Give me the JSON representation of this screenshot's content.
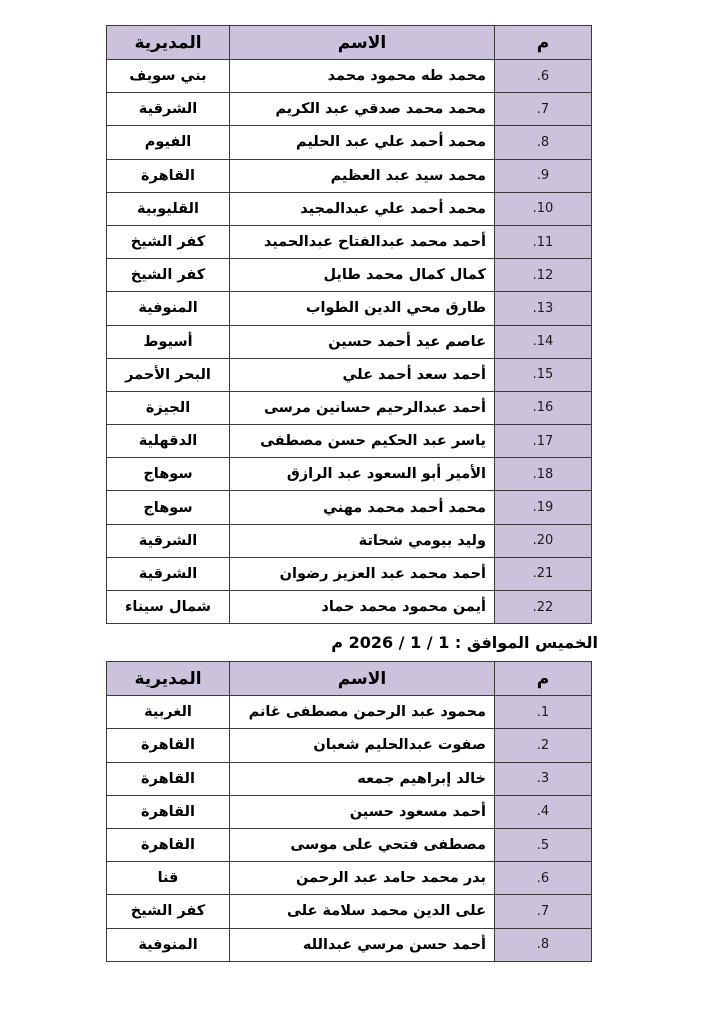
{
  "colors": {
    "cell_fill": "#ccc2dc",
    "border": "#3a3a3a",
    "text": "#000000",
    "page_background": "#ffffff"
  },
  "date_heading": "الخميس الموافق : 1 / 1 / 2026 م",
  "tables": [
    {
      "title": "roster-session-1",
      "headers": {
        "num": "م",
        "name": "الاسم",
        "directorate": "المديرية"
      },
      "rows": [
        {
          "num": ".6",
          "name": "محمد طه محمود محمد",
          "directorate": "بني سويف"
        },
        {
          "num": ".7",
          "name": "محمد محمد صدقي عبد الكريم",
          "directorate": "الشرقية"
        },
        {
          "num": ".8",
          "name": "محمد أحمد علي عبد الحليم",
          "directorate": "الفيوم"
        },
        {
          "num": ".9",
          "name": "محمد سيد عبد العظيم",
          "directorate": "القاهرة"
        },
        {
          "num": ".10",
          "name": "محمد أحمد علي عبدالمجيد",
          "directorate": "القليوبية"
        },
        {
          "num": ".11",
          "name": "أحمد محمد عبدالفتاح عبدالحميد",
          "directorate": "كفر الشيخ"
        },
        {
          "num": ".12",
          "name": "كمال كمال محمد طايل",
          "directorate": "كفر الشيخ"
        },
        {
          "num": ".13",
          "name": "طارق محي الدين الطواب",
          "directorate": "المنوفية"
        },
        {
          "num": ".14",
          "name": "عاصم عيد أحمد حسين",
          "directorate": "أسيوط"
        },
        {
          "num": ".15",
          "name": "أحمد سعد أحمد علي",
          "directorate": "البحر الأحمر"
        },
        {
          "num": ".16",
          "name": "أحمد عبدالرحيم حسانين مرسى",
          "directorate": "الجيزة"
        },
        {
          "num": ".17",
          "name": "ياسر عبد الحكيم حسن مصطفى",
          "directorate": "الدقهلية"
        },
        {
          "num": ".18",
          "name": "الأمير أبو السعود عبد الرازق",
          "directorate": "سوهاج"
        },
        {
          "num": ".19",
          "name": "محمد أحمد محمد مهني",
          "directorate": "سوهاج"
        },
        {
          "num": ".20",
          "name": "وليد بيومي شحاتة",
          "directorate": "الشرقية"
        },
        {
          "num": ".21",
          "name": "أحمد محمد عبد العزيز رضوان",
          "directorate": "الشرقية"
        },
        {
          "num": ".22",
          "name": "أيمن محمود محمد حماد",
          "directorate": "شمال سيناء"
        }
      ]
    },
    {
      "title": "roster-session-2",
      "headers": {
        "num": "م",
        "name": "الاسم",
        "directorate": "المديرية"
      },
      "rows": [
        {
          "num": ".1",
          "name": "محمود عبد الرحمن مصطفى غانم",
          "directorate": "الغربية"
        },
        {
          "num": ".2",
          "name": "صفوت عبدالحليم شعبان",
          "directorate": "القاهرة"
        },
        {
          "num": ".3",
          "name": "خالد إبراهيم جمعه",
          "directorate": "القاهرة"
        },
        {
          "num": ".4",
          "name": "أحمد مسعود حسين",
          "directorate": "القاهرة"
        },
        {
          "num": ".5",
          "name": "مصطفى فتحي على موسى",
          "directorate": "القاهرة"
        },
        {
          "num": ".6",
          "name": "بدر محمد حامد عبد الرحمن",
          "directorate": "قنا"
        },
        {
          "num": ".7",
          "name": "على الدين محمد سلامة على",
          "directorate": "كفر الشيخ"
        },
        {
          "num": ".8",
          "name": "أحمد حسن مرسي عبدالله",
          "directorate": "المنوفية"
        }
      ]
    }
  ]
}
